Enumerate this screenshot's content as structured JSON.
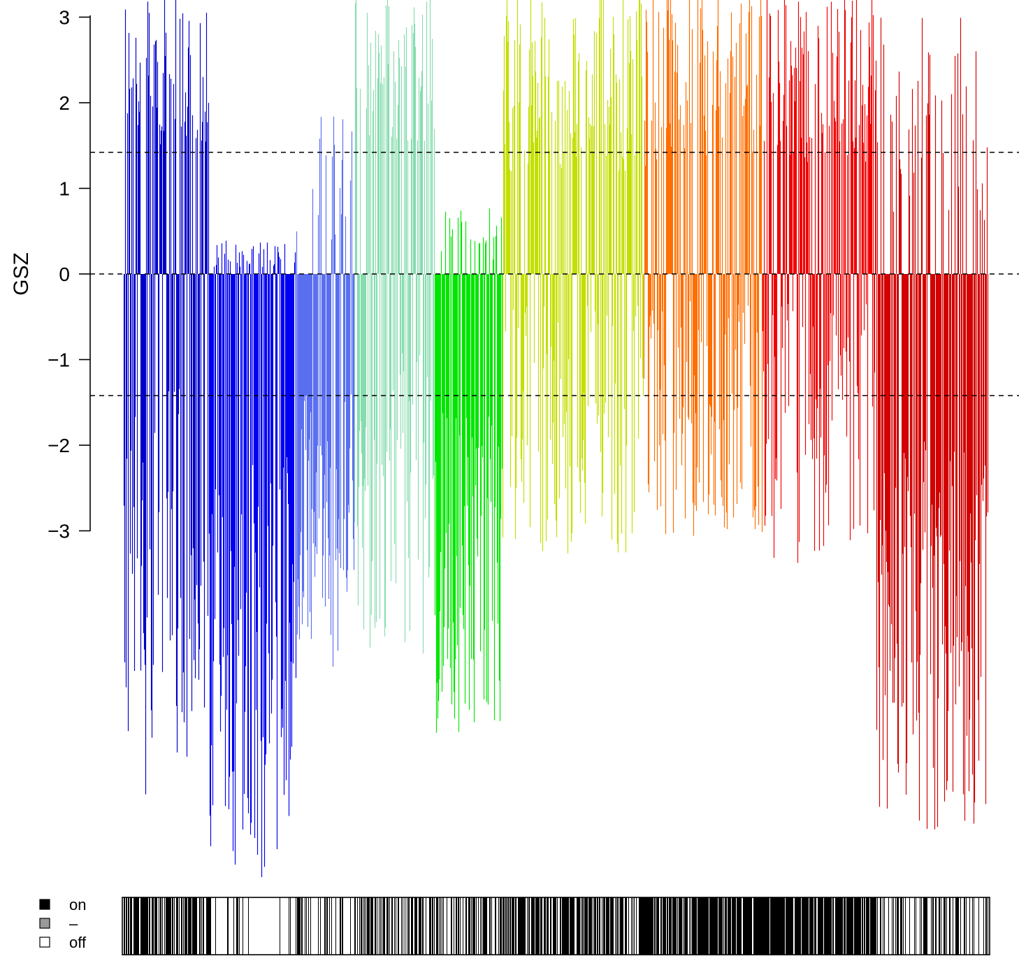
{
  "chart_data": {
    "type": "bar",
    "title": "",
    "xlabel": "",
    "ylabel": "GSZ",
    "ylim": [
      -3,
      3
    ],
    "y_ticks": [
      "3",
      "2",
      "1",
      "0",
      "−1",
      "−2",
      "−3"
    ],
    "y_tick_values": [
      3,
      2,
      1,
      0,
      -1,
      -2,
      -3
    ],
    "reference_lines": [
      1.42,
      0,
      -1.42
    ],
    "reference_line_style": "dashed",
    "legend_position": "bottom-left",
    "legend": [
      {
        "label": "on",
        "color": "#000000"
      },
      {
        "label": "–",
        "color": "#999999"
      },
      {
        "label": "off",
        "color": "#ffffff"
      }
    ],
    "groups": [
      {
        "color": "#0000c8",
        "count": 122,
        "pattern": "mixed",
        "positive_level": 3.0,
        "negative_level": -6.1,
        "on_density": 0.7
      },
      {
        "color": "#0000f0",
        "count": 125,
        "pattern": "negative",
        "positive_level": 0.4,
        "negative_level": -7.1,
        "on_density": 0.15
      },
      {
        "color": "#5a6ff0",
        "count": 83,
        "pattern": "negative",
        "positive_level": 1.9,
        "negative_level": -4.6,
        "on_density": 0.2
      },
      {
        "color": "#87dcaf",
        "count": 115,
        "pattern": "mixed",
        "positive_level": 3.0,
        "negative_level": -4.5,
        "on_density": 0.5
      },
      {
        "color": "#00e600",
        "count": 97,
        "pattern": "negative",
        "positive_level": 0.8,
        "negative_level": -5.4,
        "on_density": 0.45
      },
      {
        "color": "#c3df00",
        "count": 202,
        "pattern": "positive",
        "positive_level": 3.0,
        "negative_level": -3.3,
        "on_density": 0.7
      },
      {
        "color": "#ff6e00",
        "count": 170,
        "pattern": "positive",
        "positive_level": 3.0,
        "negative_level": -3.1,
        "on_density": 0.85
      },
      {
        "color": "#f00000",
        "count": 163,
        "pattern": "positive",
        "positive_level": 3.0,
        "negative_level": -3.4,
        "on_density": 0.9
      },
      {
        "color": "#d20000",
        "count": 160,
        "pattern": "negative",
        "positive_level": 3.0,
        "negative_level": -6.5,
        "on_density": 0.4
      }
    ]
  }
}
